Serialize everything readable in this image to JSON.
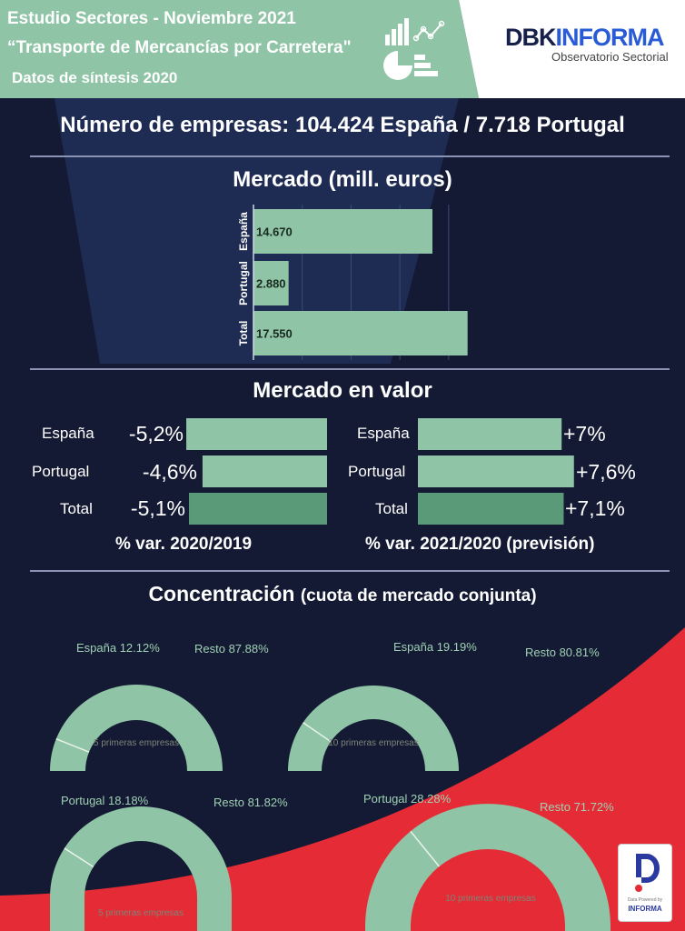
{
  "header": {
    "line1": "Estudio Sectores - Noviembre 2021",
    "line2": "“Transporte de Mercancías por Carretera\"",
    "line3": "Datos de síntesis 2020",
    "logo": {
      "part1": "DBK",
      "part2": "INFORMA",
      "subtitle": "Observatorio Sectorial"
    },
    "icon": "charts-icon"
  },
  "empresas": "Número de empresas:  104.424 España /  7.718 Portugal",
  "colors": {
    "green": "#8fc4a6",
    "dark_green": "#5a9a78",
    "navy": "#141a33",
    "red": "#e52b35",
    "logo_blue": "#2a5bd7"
  },
  "chart_data": [
    {
      "type": "bar",
      "orientation": "horizontal",
      "title": "Mercado (mill. euros)",
      "categories": [
        "España",
        "Portugal",
        "Total"
      ],
      "values": [
        14670,
        2880,
        17550
      ],
      "data_labels": [
        "14.670",
        "2.880",
        "17.550"
      ],
      "xlim": [
        0,
        20000
      ],
      "grid": true
    },
    {
      "type": "bar",
      "orientation": "horizontal",
      "title": "Mercado en valor",
      "xlabel": "% var. 2020/2019",
      "categories": [
        "España",
        "Portugal",
        "Total"
      ],
      "values": [
        -5.2,
        -4.6,
        -5.1
      ],
      "data_labels": [
        "-5,2%",
        "-4,6%",
        "-5,1%"
      ]
    },
    {
      "type": "bar",
      "orientation": "horizontal",
      "xlabel": "% var. 2021/2020 (previsión)",
      "categories": [
        "España",
        "Portugal",
        "Total"
      ],
      "values": [
        7,
        7.6,
        7.1
      ],
      "data_labels": [
        "+7%",
        "+7,6%",
        "+7,1%"
      ]
    },
    {
      "type": "pie",
      "title": "Concentración",
      "subtitle": "(cuota de mercado conjunta)",
      "gauges": [
        {
          "center_label": "5 primeras empresas",
          "slices": [
            {
              "label": "España 12.12%",
              "value": 12.12
            },
            {
              "label": "Resto 87.88%",
              "value": 87.88
            }
          ]
        },
        {
          "center_label": "10 primeras empresas",
          "slices": [
            {
              "label": "España 19.19%",
              "value": 19.19
            },
            {
              "label": "Resto 80.81%",
              "value": 80.81
            }
          ]
        },
        {
          "center_label": "5 primeras empresas",
          "slices": [
            {
              "label": "Portugal 18.18%",
              "value": 18.18
            },
            {
              "label": "Resto 81.82%",
              "value": 81.82
            }
          ]
        },
        {
          "center_label": "10 primeras empresas",
          "slices": [
            {
              "label": "Portugal 28.28%",
              "value": 28.28
            },
            {
              "label": "Resto 71.72%",
              "value": 71.72
            }
          ]
        }
      ]
    }
  ],
  "badge": {
    "small": "Data Powered by",
    "brand": "INFORMA"
  }
}
